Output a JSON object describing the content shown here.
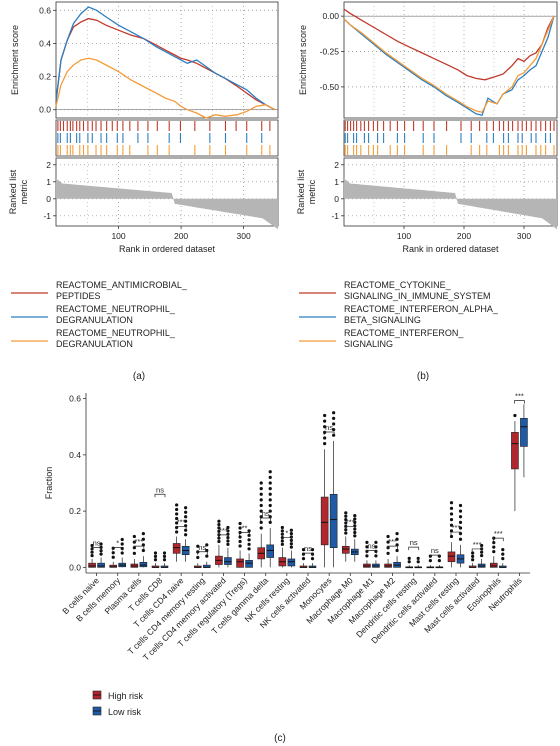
{
  "figure": {
    "label_a": "(a)",
    "label_b": "(b)",
    "label_c": "(c)"
  },
  "chart_data": [
    {
      "type": "line",
      "panel": "a",
      "ylabel_top": "Enrichment score",
      "ylabel_bottom": "Ranked list metric",
      "xlabel": "Rank in ordered dataset",
      "xlim": [
        0,
        355
      ],
      "es_ylim": [
        -0.05,
        0.65
      ],
      "es_ticks": [
        "0.6",
        "0.4",
        "0.2",
        "0.0"
      ],
      "es_tick_values": [
        0.6,
        0.4,
        0.2,
        0.0
      ],
      "metric_ticks": [
        "2",
        "1",
        "0",
        "-1"
      ],
      "metric_tick_values": [
        2,
        1,
        0,
        -1
      ],
      "x_ticks": [
        "100",
        "200",
        "300"
      ],
      "x_tick_values": [
        100,
        200,
        300
      ],
      "series": [
        {
          "name": "REACTOME_ANTIMICROBIAL_\nPEPTIDES",
          "color": "#c0392b",
          "x": [
            0,
            8,
            18,
            28,
            40,
            52,
            65,
            80,
            100,
            120,
            140,
            160,
            175,
            190,
            200,
            210,
            225,
            240,
            255,
            270,
            290,
            305,
            320,
            335,
            350
          ],
          "values": [
            0.05,
            0.3,
            0.42,
            0.5,
            0.53,
            0.55,
            0.54,
            0.51,
            0.48,
            0.45,
            0.43,
            0.39,
            0.36,
            0.33,
            0.31,
            0.3,
            0.28,
            0.25,
            0.22,
            0.19,
            0.14,
            0.1,
            0.06,
            0.03,
            0.0
          ]
        },
        {
          "name": "REACTOME_NEUTROPHIL_\nDEGRANULATION",
          "color": "#2d7fc1",
          "x": [
            0,
            8,
            18,
            28,
            40,
            52,
            65,
            80,
            100,
            120,
            140,
            160,
            175,
            190,
            200,
            210,
            225,
            240,
            255,
            270,
            290,
            305,
            320,
            335,
            350
          ],
          "values": [
            0.05,
            0.3,
            0.42,
            0.52,
            0.58,
            0.62,
            0.6,
            0.56,
            0.51,
            0.47,
            0.43,
            0.38,
            0.35,
            0.32,
            0.3,
            0.28,
            0.3,
            0.26,
            0.22,
            0.19,
            0.15,
            0.12,
            0.07,
            0.03,
            0.0
          ]
        },
        {
          "name": "REACTOME_NEUTROPHIL_\nDEGRANULATION",
          "color": "#f39c38",
          "x": [
            0,
            8,
            18,
            28,
            40,
            52,
            65,
            80,
            100,
            120,
            140,
            160,
            175,
            190,
            200,
            210,
            225,
            240,
            255,
            270,
            290,
            305,
            320,
            335,
            350
          ],
          "values": [
            0.02,
            0.15,
            0.23,
            0.27,
            0.3,
            0.31,
            0.3,
            0.27,
            0.23,
            0.18,
            0.14,
            0.1,
            0.07,
            0.05,
            0.02,
            0.0,
            -0.02,
            -0.05,
            -0.03,
            -0.04,
            -0.03,
            -0.01,
            0.02,
            0.03,
            0.0
          ]
        }
      ]
    },
    {
      "type": "line",
      "panel": "b",
      "ylabel_top": "Enrichment score",
      "ylabel_bottom": "Ranked list metric",
      "xlabel": "Rank in ordered dataset",
      "xlim": [
        0,
        355
      ],
      "es_ylim": [
        -0.72,
        0.1
      ],
      "es_ticks": [
        "0.00",
        "-0.25",
        "-0.50"
      ],
      "es_tick_values": [
        0.0,
        -0.25,
        -0.5
      ],
      "metric_ticks": [
        "2",
        "1",
        "0",
        "-1"
      ],
      "metric_tick_values": [
        2,
        1,
        0,
        -1
      ],
      "x_ticks": [
        "100",
        "200",
        "300"
      ],
      "x_tick_values": [
        100,
        200,
        300
      ],
      "series": [
        {
          "name": "REACTOME_CYTOKINE_\nSIGNALING_IN_IMMUNE_SYSTEM",
          "color": "#c0392b",
          "x": [
            0,
            10,
            30,
            50,
            70,
            90,
            110,
            130,
            150,
            170,
            190,
            205,
            220,
            235,
            250,
            265,
            280,
            290,
            300,
            310,
            320,
            330,
            340,
            350
          ],
          "values": [
            0.05,
            0.02,
            -0.03,
            -0.08,
            -0.13,
            -0.18,
            -0.22,
            -0.26,
            -0.3,
            -0.34,
            -0.38,
            -0.42,
            -0.44,
            -0.45,
            -0.43,
            -0.41,
            -0.35,
            -0.3,
            -0.32,
            -0.28,
            -0.26,
            -0.2,
            -0.08,
            0.0
          ]
        },
        {
          "name": "REACTOME_INTERFERON_ALPHA_\nBETA_SIGNALING",
          "color": "#2d7fc1",
          "x": [
            0,
            10,
            30,
            50,
            70,
            90,
            110,
            130,
            150,
            170,
            190,
            205,
            220,
            230,
            240,
            255,
            265,
            280,
            290,
            300,
            310,
            320,
            330,
            340,
            350
          ],
          "values": [
            -0.02,
            -0.06,
            -0.13,
            -0.2,
            -0.27,
            -0.33,
            -0.39,
            -0.45,
            -0.5,
            -0.56,
            -0.61,
            -0.65,
            -0.69,
            -0.7,
            -0.58,
            -0.62,
            -0.55,
            -0.52,
            -0.45,
            -0.42,
            -0.38,
            -0.35,
            -0.25,
            -0.15,
            0.0
          ]
        },
        {
          "name": "REACTOME_INTERFERON_\nSIGNALING",
          "color": "#f39c38",
          "x": [
            0,
            10,
            30,
            50,
            70,
            90,
            110,
            130,
            150,
            170,
            190,
            205,
            220,
            230,
            240,
            255,
            265,
            280,
            290,
            300,
            310,
            320,
            330,
            340,
            350
          ],
          "values": [
            -0.02,
            -0.06,
            -0.12,
            -0.19,
            -0.26,
            -0.32,
            -0.38,
            -0.44,
            -0.49,
            -0.55,
            -0.6,
            -0.64,
            -0.67,
            -0.68,
            -0.6,
            -0.62,
            -0.55,
            -0.5,
            -0.42,
            -0.4,
            -0.35,
            -0.3,
            -0.2,
            -0.1,
            0.0
          ]
        }
      ]
    },
    {
      "type": "box",
      "panel": "c",
      "ylabel": "Fraction",
      "ylim": [
        -0.02,
        0.62
      ],
      "y_ticks": [
        "0.0",
        "0.2",
        "0.4",
        "0.6"
      ],
      "y_tick_values": [
        0.0,
        0.2,
        0.4,
        0.6
      ],
      "legend": [
        "High risk",
        "Low risk"
      ],
      "series_colors": [
        "#b0282e",
        "#1f5aa6"
      ],
      "categories": [
        "B cells naive",
        "B cells memory",
        "Plasma cells",
        "T cells CD8",
        "T cells CD4 naive",
        "T cells CD4 memory resting",
        "T cells CD4 memory activated",
        "T cells regulatory (Tregs)",
        "T cells gamma delta",
        "NK cells resting",
        "NK cells activated",
        "Monocytes",
        "Macrophage M0",
        "Macrophage M1",
        "Macrophage M2",
        "Dendritic cells resting",
        "Dendritic cells activated",
        "Mast cells resting",
        "Mast cells activated",
        "Eosinophils",
        "Neutrophils"
      ],
      "significance": [
        "ns",
        "*",
        "***",
        "ns",
        "***",
        "ns",
        "***",
        "**",
        "ns",
        "*",
        "ns",
        "ns",
        "***",
        "ns",
        "***",
        "ns",
        "ns",
        "***",
        "***",
        "***",
        "***"
      ],
      "high_risk": [
        [
          0.0,
          0.0,
          0.005,
          0.015,
          0.03
        ],
        [
          0.0,
          0.0,
          0.002,
          0.008,
          0.02
        ],
        [
          0.0,
          0.0,
          0.005,
          0.012,
          0.03
        ],
        [
          0.0,
          0.0,
          0.0,
          0.005,
          0.015
        ],
        [
          0.02,
          0.05,
          0.07,
          0.085,
          0.11
        ],
        [
          0.0,
          0.0,
          0.0,
          0.005,
          0.015
        ],
        [
          0.0,
          0.01,
          0.025,
          0.04,
          0.08
        ],
        [
          0.0,
          0.0,
          0.02,
          0.03,
          0.06
        ],
        [
          0.0,
          0.03,
          0.05,
          0.07,
          0.12
        ],
        [
          0.0,
          0.005,
          0.02,
          0.035,
          0.07
        ],
        [
          0.0,
          0.0,
          0.0,
          0.005,
          0.015
        ],
        [
          0.0,
          0.08,
          0.16,
          0.25,
          0.42
        ],
        [
          0.02,
          0.05,
          0.065,
          0.075,
          0.11
        ],
        [
          0.0,
          0.0,
          0.005,
          0.012,
          0.025
        ],
        [
          0.0,
          0.0,
          0.005,
          0.012,
          0.03
        ],
        [
          0.0,
          0.0,
          0.0,
          0.002,
          0.008
        ],
        [
          0.0,
          0.0,
          0.0,
          0.002,
          0.008
        ],
        [
          0.0,
          0.02,
          0.04,
          0.055,
          0.09
        ],
        [
          0.0,
          0.0,
          0.0,
          0.005,
          0.015
        ],
        [
          0.0,
          0.0,
          0.005,
          0.015,
          0.04
        ],
        [
          0.2,
          0.35,
          0.44,
          0.48,
          0.52
        ]
      ],
      "low_risk": [
        [
          0.0,
          0.0,
          0.005,
          0.015,
          0.035
        ],
        [
          0.0,
          0.002,
          0.008,
          0.015,
          0.035
        ],
        [
          0.0,
          0.002,
          0.008,
          0.018,
          0.04
        ],
        [
          0.0,
          0.0,
          0.0,
          0.005,
          0.015
        ],
        [
          0.02,
          0.045,
          0.06,
          0.075,
          0.1
        ],
        [
          0.0,
          0.0,
          0.0,
          0.008,
          0.02
        ],
        [
          0.0,
          0.01,
          0.02,
          0.035,
          0.07
        ],
        [
          0.0,
          0.0,
          0.015,
          0.025,
          0.05
        ],
        [
          0.0,
          0.035,
          0.06,
          0.08,
          0.14
        ],
        [
          0.0,
          0.005,
          0.02,
          0.03,
          0.06
        ],
        [
          0.0,
          0.0,
          0.0,
          0.005,
          0.015
        ],
        [
          0.0,
          0.07,
          0.17,
          0.26,
          0.45
        ],
        [
          0.02,
          0.045,
          0.055,
          0.065,
          0.1
        ],
        [
          0.0,
          0.0,
          0.005,
          0.012,
          0.025
        ],
        [
          0.0,
          0.0,
          0.008,
          0.018,
          0.04
        ],
        [
          0.0,
          0.0,
          0.0,
          0.002,
          0.008
        ],
        [
          0.0,
          0.0,
          0.0,
          0.002,
          0.008
        ],
        [
          0.0,
          0.015,
          0.03,
          0.045,
          0.08
        ],
        [
          0.0,
          0.0,
          0.005,
          0.012,
          0.03
        ],
        [
          0.0,
          0.0,
          0.0,
          0.005,
          0.015
        ],
        [
          0.32,
          0.43,
          0.5,
          0.53,
          0.58
        ]
      ]
    }
  ]
}
